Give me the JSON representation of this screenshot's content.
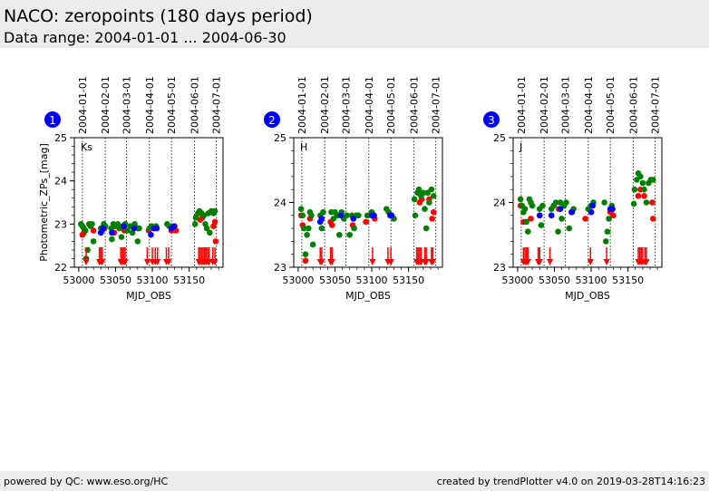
{
  "header": {
    "title": "NACO: zeropoints (180 days period)",
    "subtitle": "Data range: 2004-01-01 ... 2004-06-30"
  },
  "footer": {
    "left": "powered by QC: www.eso.org/HC",
    "right": "created by trendPlotter v4.0 on 2019-03-28T14:16:23"
  },
  "colors": {
    "green": "#008000",
    "red": "#ff0000",
    "blue": "#0000ff",
    "badge": "#0000ff"
  },
  "chart_data": [
    {
      "type": "scatter",
      "badge": "1",
      "filter": "Ks",
      "xlabel": "MJD_OBS",
      "ylabel": "Photometric_ZPs_[mag]",
      "xlim": [
        52994,
        53196
      ],
      "ylim": [
        22,
        25
      ],
      "xticks": [
        53000,
        53050,
        53100,
        53150
      ],
      "yticks": [
        22,
        23,
        24,
        25
      ],
      "date_lines": [
        {
          "label": "2004-01-01",
          "mjd": 53005
        },
        {
          "label": "2004-02-01",
          "mjd": 53036
        },
        {
          "label": "2004-03-01",
          "mjd": 53065
        },
        {
          "label": "2004-04-01",
          "mjd": 53096
        },
        {
          "label": "2004-05-01",
          "mjd": 53126
        },
        {
          "label": "2004-06-01",
          "mjd": 53157
        },
        {
          "label": "2004-07-01",
          "mjd": 53187
        }
      ],
      "green": [
        [
          53003,
          23.0
        ],
        [
          53005,
          22.95
        ],
        [
          53007,
          22.9
        ],
        [
          53009,
          22.85
        ],
        [
          53010,
          22.2
        ],
        [
          53012,
          22.4
        ],
        [
          53014,
          23.0
        ],
        [
          53016,
          22.95
        ],
        [
          53018,
          23.0
        ],
        [
          53020,
          22.6
        ],
        [
          53030,
          22.9
        ],
        [
          53032,
          22.85
        ],
        [
          53034,
          23.0
        ],
        [
          53036,
          22.95
        ],
        [
          53044,
          22.9
        ],
        [
          53045,
          22.65
        ],
        [
          53047,
          23.0
        ],
        [
          53050,
          22.95
        ],
        [
          53053,
          23.0
        ],
        [
          53055,
          22.9
        ],
        [
          53058,
          22.7
        ],
        [
          53060,
          22.95
        ],
        [
          53063,
          23.0
        ],
        [
          53066,
          22.85
        ],
        [
          53070,
          22.95
        ],
        [
          53073,
          22.8
        ],
        [
          53076,
          23.0
        ],
        [
          53080,
          22.6
        ],
        [
          53082,
          22.9
        ],
        [
          53096,
          22.9
        ],
        [
          53099,
          22.95
        ],
        [
          53102,
          22.9
        ],
        [
          53105,
          22.95
        ],
        [
          53120,
          23.0
        ],
        [
          53123,
          22.95
        ],
        [
          53126,
          22.9
        ],
        [
          53129,
          22.95
        ],
        [
          53158,
          23.0
        ],
        [
          53159,
          23.15
        ],
        [
          53162,
          23.25
        ],
        [
          53164,
          23.3
        ],
        [
          53167,
          23.25
        ],
        [
          53170,
          23.2
        ],
        [
          53172,
          23.0
        ],
        [
          53174,
          22.9
        ],
        [
          53176,
          23.25
        ],
        [
          53178,
          22.8
        ],
        [
          53180,
          23.3
        ],
        [
          53183,
          23.25
        ],
        [
          53185,
          23.3
        ]
      ],
      "red": [
        [
          53005,
          22.75
        ],
        [
          53007,
          22.8
        ],
        [
          53020,
          22.85
        ],
        [
          53035,
          22.9
        ],
        [
          53048,
          22.8
        ],
        [
          53062,
          22.85
        ],
        [
          53080,
          22.9
        ],
        [
          53095,
          22.85
        ],
        [
          53126,
          22.85
        ],
        [
          53132,
          22.85
        ],
        [
          53165,
          23.1
        ],
        [
          53168,
          23.15
        ],
        [
          53183,
          22.95
        ],
        [
          53185,
          23.05
        ],
        [
          53186,
          22.6
        ]
      ],
      "blue": [
        [
          53030,
          22.8
        ],
        [
          53033,
          22.9
        ],
        [
          53045,
          22.8
        ],
        [
          53061,
          22.95
        ],
        [
          53075,
          22.9
        ],
        [
          53098,
          22.75
        ],
        [
          53102,
          22.9
        ],
        [
          53106,
          22.9
        ],
        [
          53126,
          22.9
        ],
        [
          53130,
          22.95
        ]
      ],
      "upper_limits": [
        53010,
        53028,
        53030,
        53032,
        53057,
        53059,
        53061,
        53063,
        53093,
        53100,
        53104,
        53107,
        53119,
        53122,
        53163,
        53165,
        53167,
        53169,
        53171,
        53173,
        53175,
        53177,
        53182,
        53185
      ]
    },
    {
      "type": "scatter",
      "badge": "2",
      "filter": "H",
      "xlabel": "MJD_OBS",
      "ylabel": "",
      "xlim": [
        52994,
        53196
      ],
      "ylim": [
        23,
        25
      ],
      "xticks": [
        53000,
        53050,
        53100,
        53150
      ],
      "yticks": [
        23,
        24,
        25
      ],
      "date_lines": [
        {
          "label": "2004-01-01",
          "mjd": 53005
        },
        {
          "label": "2004-02-01",
          "mjd": 53036
        },
        {
          "label": "2004-03-01",
          "mjd": 53065
        },
        {
          "label": "2004-04-01",
          "mjd": 53096
        },
        {
          "label": "2004-05-01",
          "mjd": 53126
        },
        {
          "label": "2004-06-01",
          "mjd": 53157
        },
        {
          "label": "2004-07-01",
          "mjd": 53187
        }
      ],
      "green": [
        [
          53004,
          23.9
        ],
        [
          53006,
          23.8
        ],
        [
          53008,
          23.6
        ],
        [
          53010,
          23.2
        ],
        [
          53012,
          23.5
        ],
        [
          53014,
          23.6
        ],
        [
          53016,
          23.85
        ],
        [
          53018,
          23.8
        ],
        [
          53020,
          23.35
        ],
        [
          53030,
          23.8
        ],
        [
          53032,
          23.6
        ],
        [
          53034,
          23.85
        ],
        [
          53045,
          23.85
        ],
        [
          53048,
          23.75
        ],
        [
          53050,
          23.85
        ],
        [
          53053,
          23.8
        ],
        [
          53056,
          23.5
        ],
        [
          53059,
          23.85
        ],
        [
          53062,
          23.75
        ],
        [
          53066,
          23.8
        ],
        [
          53070,
          23.5
        ],
        [
          53073,
          23.8
        ],
        [
          53076,
          23.6
        ],
        [
          53079,
          23.8
        ],
        [
          53082,
          23.8
        ],
        [
          53094,
          23.8
        ],
        [
          53100,
          23.85
        ],
        [
          53103,
          23.8
        ],
        [
          53120,
          23.9
        ],
        [
          53123,
          23.85
        ],
        [
          53126,
          23.8
        ],
        [
          53130,
          23.75
        ],
        [
          53158,
          24.05
        ],
        [
          53159,
          23.8
        ],
        [
          53162,
          24.15
        ],
        [
          53164,
          24.2
        ],
        [
          53167,
          24.1
        ],
        [
          53170,
          24.15
        ],
        [
          53172,
          23.9
        ],
        [
          53174,
          23.6
        ],
        [
          53176,
          24.15
        ],
        [
          53178,
          24.0
        ],
        [
          53181,
          24.2
        ],
        [
          53184,
          24.1
        ]
      ],
      "red": [
        [
          53004,
          23.8
        ],
        [
          53006,
          23.65
        ],
        [
          53010,
          23.1
        ],
        [
          53016,
          23.75
        ],
        [
          53044,
          23.7
        ],
        [
          53046,
          23.65
        ],
        [
          53074,
          23.65
        ],
        [
          53092,
          23.7
        ],
        [
          53104,
          23.75
        ],
        [
          53130,
          23.75
        ],
        [
          53165,
          24.0
        ],
        [
          53168,
          24.05
        ],
        [
          53178,
          24.05
        ],
        [
          53182,
          23.75
        ],
        [
          53184,
          23.85
        ]
      ],
      "blue": [
        [
          53030,
          23.7
        ],
        [
          53032,
          23.75
        ],
        [
          53058,
          23.8
        ],
        [
          53075,
          23.75
        ],
        [
          53100,
          23.8
        ],
        [
          53103,
          23.8
        ],
        [
          53125,
          23.8
        ],
        [
          53127,
          23.8
        ]
      ],
      "upper_limits": [
        53030,
        53032,
        53044,
        53046,
        53101,
        53122,
        53126,
        53161,
        53163,
        53165,
        53167,
        53172,
        53174,
        53181,
        53183
      ]
    },
    {
      "type": "scatter",
      "badge": "3",
      "filter": "J",
      "xlabel": "MJD_OBS",
      "ylabel": "",
      "xlim": [
        52994,
        53196
      ],
      "ylim": [
        23,
        25
      ],
      "xticks": [
        53000,
        53050,
        53100,
        53150
      ],
      "yticks": [
        23,
        24,
        25
      ],
      "date_lines": [
        {
          "label": "2004-01-01",
          "mjd": 53005
        },
        {
          "label": "2004-02-01",
          "mjd": 53036
        },
        {
          "label": "2004-03-01",
          "mjd": 53065
        },
        {
          "label": "2004-04-01",
          "mjd": 53096
        },
        {
          "label": "2004-05-01",
          "mjd": 53126
        },
        {
          "label": "2004-06-01",
          "mjd": 53157
        },
        {
          "label": "2004-07-01",
          "mjd": 53187
        }
      ],
      "green": [
        [
          53004,
          24.05
        ],
        [
          53006,
          23.95
        ],
        [
          53008,
          23.85
        ],
        [
          53010,
          23.9
        ],
        [
          53012,
          23.7
        ],
        [
          53014,
          23.55
        ],
        [
          53016,
          24.05
        ],
        [
          53018,
          24.0
        ],
        [
          53020,
          23.95
        ],
        [
          53030,
          23.9
        ],
        [
          53032,
          23.65
        ],
        [
          53034,
          23.95
        ],
        [
          53046,
          23.9
        ],
        [
          53049,
          23.95
        ],
        [
          53052,
          24.0
        ],
        [
          53055,
          23.55
        ],
        [
          53058,
          24.0
        ],
        [
          53060,
          23.75
        ],
        [
          53063,
          23.95
        ],
        [
          53066,
          24.0
        ],
        [
          53070,
          23.6
        ],
        [
          53073,
          23.85
        ],
        [
          53076,
          23.9
        ],
        [
          53096,
          23.9
        ],
        [
          53100,
          23.95
        ],
        [
          53103,
          24.0
        ],
        [
          53118,
          24.0
        ],
        [
          53120,
          23.4
        ],
        [
          53122,
          23.55
        ],
        [
          53124,
          23.75
        ],
        [
          53128,
          23.95
        ],
        [
          53158,
          23.98
        ],
        [
          53159,
          24.2
        ],
        [
          53162,
          24.35
        ],
        [
          53164,
          24.45
        ],
        [
          53167,
          24.4
        ],
        [
          53170,
          24.3
        ],
        [
          53172,
          24.2
        ],
        [
          53175,
          24.0
        ],
        [
          53178,
          24.3
        ],
        [
          53181,
          24.35
        ],
        [
          53184,
          24.35
        ]
      ],
      "red": [
        [
          53004,
          23.95
        ],
        [
          53008,
          23.7
        ],
        [
          53018,
          23.75
        ],
        [
          53030,
          23.8
        ],
        [
          53046,
          23.8
        ],
        [
          53056,
          23.9
        ],
        [
          53092,
          23.75
        ],
        [
          53100,
          23.85
        ],
        [
          53126,
          23.85
        ],
        [
          53130,
          23.8
        ],
        [
          53164,
          24.1
        ],
        [
          53167,
          24.2
        ],
        [
          53172,
          24.1
        ],
        [
          53183,
          24.0
        ],
        [
          53184,
          23.75
        ]
      ],
      "blue": [
        [
          53030,
          23.8
        ],
        [
          53046,
          23.8
        ],
        [
          53058,
          23.9
        ],
        [
          53074,
          23.85
        ],
        [
          53100,
          23.85
        ],
        [
          53102,
          23.95
        ],
        [
          53126,
          23.9
        ],
        [
          53129,
          23.9
        ]
      ],
      "upper_limits": [
        53008,
        53010,
        53012,
        53014,
        53028,
        53030,
        53044,
        53099,
        53121,
        53164,
        53166,
        53168,
        53170,
        53173,
        53175
      ]
    }
  ]
}
